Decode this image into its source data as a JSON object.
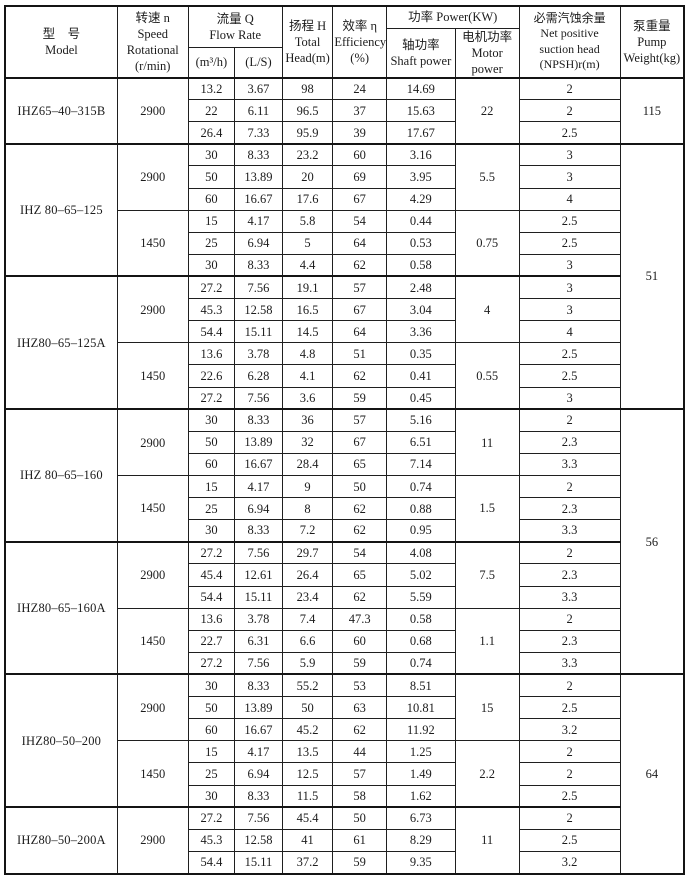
{
  "page": {
    "background": "#ffffff",
    "border_color": "#1f1f1f",
    "text_color": "#1c1c1c"
  },
  "table": {
    "header": {
      "model": "型　号\nModel",
      "speed": "转速 n\nSpeed\nRotational\n(r/min)",
      "flow_group": "流量 Q\nFlow Rate",
      "flow_sub": [
        "(m³/h)",
        "(L/S)"
      ],
      "head": "扬程 H\nTotal\nHead(m)",
      "efficiency": "效率 η\nEfficiency\n(%)",
      "power_group": "功率 Power(KW)",
      "power_sub": [
        "轴功率\nShaft power",
        "电机功率\nMotor power"
      ],
      "npsh": "必需汽蚀余量\nNet positive\nsuction head\n(NPSH)r(m)",
      "weight": "泵重量\nPump\nWeight(kg)"
    },
    "weights": [
      {
        "value": "115",
        "row_count": 3
      },
      {
        "value": "51",
        "row_count": 12
      },
      {
        "value": "56",
        "row_count": 12
      },
      {
        "value": "64",
        "row_count": 9
      }
    ],
    "sections": [
      {
        "model": "IHZ65–40–315B",
        "groups": [
          {
            "speed": "2900",
            "motor_power": "22",
            "rows": [
              [
                "13.2",
                "3.67",
                "98",
                "24",
                "14.69",
                "2"
              ],
              [
                "22",
                "6.11",
                "96.5",
                "37",
                "15.63",
                "2"
              ],
              [
                "26.4",
                "7.33",
                "95.9",
                "39",
                "17.67",
                "2.5"
              ]
            ]
          }
        ]
      },
      {
        "model": "IHZ 80–65–125",
        "groups": [
          {
            "speed": "2900",
            "motor_power": "5.5",
            "rows": [
              [
                "30",
                "8.33",
                "23.2",
                "60",
                "3.16",
                "3"
              ],
              [
                "50",
                "13.89",
                "20",
                "69",
                "3.95",
                "3"
              ],
              [
                "60",
                "16.67",
                "17.6",
                "67",
                "4.29",
                "4"
              ]
            ]
          },
          {
            "speed": "1450",
            "motor_power": "0.75",
            "rows": [
              [
                "15",
                "4.17",
                "5.8",
                "54",
                "0.44",
                "2.5"
              ],
              [
                "25",
                "6.94",
                "5",
                "64",
                "0.53",
                "2.5"
              ],
              [
                "30",
                "8.33",
                "4.4",
                "62",
                "0.58",
                "3"
              ]
            ]
          }
        ]
      },
      {
        "model": "IHZ80–65–125A",
        "groups": [
          {
            "speed": "2900",
            "motor_power": "4",
            "rows": [
              [
                "27.2",
                "7.56",
                "19.1",
                "57",
                "2.48",
                "3"
              ],
              [
                "45.3",
                "12.58",
                "16.5",
                "67",
                "3.04",
                "3"
              ],
              [
                "54.4",
                "15.11",
                "14.5",
                "64",
                "3.36",
                "4"
              ]
            ]
          },
          {
            "speed": "1450",
            "motor_power": "0.55",
            "rows": [
              [
                "13.6",
                "3.78",
                "4.8",
                "51",
                "0.35",
                "2.5"
              ],
              [
                "22.6",
                "6.28",
                "4.1",
                "62",
                "0.41",
                "2.5"
              ],
              [
                "27.2",
                "7.56",
                "3.6",
                "59",
                "0.45",
                "3"
              ]
            ]
          }
        ]
      },
      {
        "model": "IHZ 80–65–160",
        "groups": [
          {
            "speed": "2900",
            "motor_power": "11",
            "rows": [
              [
                "30",
                "8.33",
                "36",
                "57",
                "5.16",
                "2"
              ],
              [
                "50",
                "13.89",
                "32",
                "67",
                "6.51",
                "2.3"
              ],
              [
                "60",
                "16.67",
                "28.4",
                "65",
                "7.14",
                "3.3"
              ]
            ]
          },
          {
            "speed": "1450",
            "motor_power": "1.5",
            "rows": [
              [
                "15",
                "4.17",
                "9",
                "50",
                "0.74",
                "2"
              ],
              [
                "25",
                "6.94",
                "8",
                "62",
                "0.88",
                "2.3"
              ],
              [
                "30",
                "8.33",
                "7.2",
                "62",
                "0.95",
                "3.3"
              ]
            ]
          }
        ]
      },
      {
        "model": "IHZ80–65–160A",
        "groups": [
          {
            "speed": "2900",
            "motor_power": "7.5",
            "rows": [
              [
                "27.2",
                "7.56",
                "29.7",
                "54",
                "4.08",
                "2"
              ],
              [
                "45.4",
                "12.61",
                "26.4",
                "65",
                "5.02",
                "2.3"
              ],
              [
                "54.4",
                "15.11",
                "23.4",
                "62",
                "5.59",
                "3.3"
              ]
            ]
          },
          {
            "speed": "1450",
            "motor_power": "1.1",
            "rows": [
              [
                "13.6",
                "3.78",
                "7.4",
                "47.3",
                "0.58",
                "2"
              ],
              [
                "22.7",
                "6.31",
                "6.6",
                "60",
                "0.68",
                "2.3"
              ],
              [
                "27.2",
                "7.56",
                "5.9",
                "59",
                "0.74",
                "3.3"
              ]
            ]
          }
        ]
      },
      {
        "model": "IHZ80–50–200",
        "groups": [
          {
            "speed": "2900",
            "motor_power": "15",
            "rows": [
              [
                "30",
                "8.33",
                "55.2",
                "53",
                "8.51",
                "2"
              ],
              [
                "50",
                "13.89",
                "50",
                "63",
                "10.81",
                "2.5"
              ],
              [
                "60",
                "16.67",
                "45.2",
                "62",
                "11.92",
                "3.2"
              ]
            ]
          },
          {
            "speed": "1450",
            "motor_power": "2.2",
            "rows": [
              [
                "15",
                "4.17",
                "13.5",
                "44",
                "1.25",
                "2"
              ],
              [
                "25",
                "6.94",
                "12.5",
                "57",
                "1.49",
                "2"
              ],
              [
                "30",
                "8.33",
                "11.5",
                "58",
                "1.62",
                "2.5"
              ]
            ]
          }
        ]
      },
      {
        "model": "IHZ80–50–200A",
        "groups": [
          {
            "speed": "2900",
            "motor_power": "11",
            "rows": [
              [
                "27.2",
                "7.56",
                "45.4",
                "50",
                "6.73",
                "2"
              ],
              [
                "45.3",
                "12.58",
                "41",
                "61",
                "8.29",
                "2.5"
              ],
              [
                "54.4",
                "15.11",
                "37.2",
                "59",
                "9.35",
                "3.2"
              ]
            ]
          }
        ]
      }
    ]
  }
}
